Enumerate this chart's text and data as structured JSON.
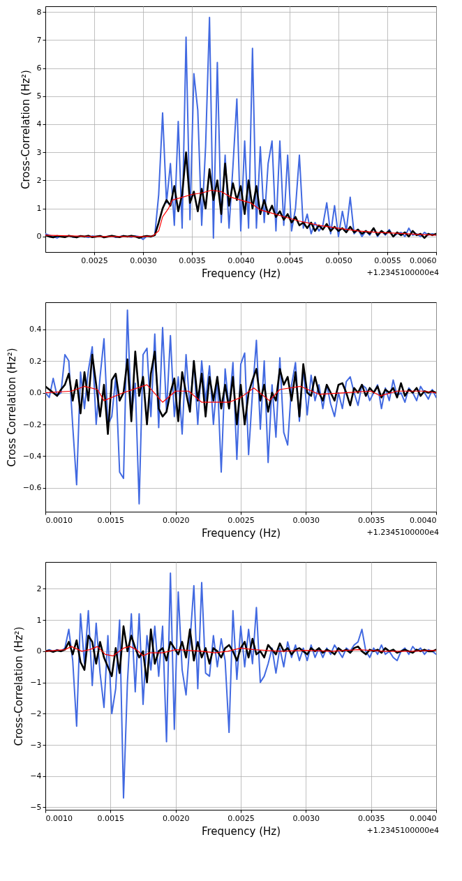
{
  "chart_data": [
    {
      "type": "line",
      "xlabel": "Frequency (Hz)",
      "ylabel": "Cross-Correlation (Hz²)",
      "annotations": [
        "+1.2345100000e4"
      ],
      "grid": true,
      "xlim": [
        0.002,
        0.006
      ],
      "xticks": [
        {
          "value": 0.0025,
          "label": "0.0025"
        },
        {
          "value": 0.003,
          "label": "0.0030"
        },
        {
          "value": 0.0035,
          "label": "0.0035"
        },
        {
          "value": 0.004,
          "label": "0.0040"
        },
        {
          "value": 0.0045,
          "label": "0.0045"
        },
        {
          "value": 0.005,
          "label": "0.0050"
        },
        {
          "value": 0.0055,
          "label": "0.0055"
        },
        {
          "value": 0.006,
          "label": "0.0060"
        }
      ],
      "ylim": [
        -0.55,
        8.2
      ],
      "yticks": [
        0,
        1,
        2,
        3,
        4,
        5,
        6,
        7,
        8
      ],
      "x": [
        0.002,
        0.00204,
        0.00208,
        0.00212,
        0.00216,
        0.0022,
        0.00224,
        0.00228,
        0.00232,
        0.00236,
        0.0024,
        0.00244,
        0.00248,
        0.00252,
        0.00256,
        0.0026,
        0.00264,
        0.00268,
        0.00272,
        0.00276,
        0.0028,
        0.00284,
        0.00288,
        0.00292,
        0.00296,
        0.003,
        0.00304,
        0.00308,
        0.00312,
        0.00316,
        0.0032,
        0.00324,
        0.00328,
        0.00332,
        0.00336,
        0.0034,
        0.00344,
        0.00348,
        0.00352,
        0.00356,
        0.0036,
        0.00364,
        0.00368,
        0.00372,
        0.00376,
        0.0038,
        0.00384,
        0.00388,
        0.00392,
        0.00396,
        0.004,
        0.00404,
        0.00408,
        0.00412,
        0.00416,
        0.0042,
        0.00424,
        0.00428,
        0.00432,
        0.00436,
        0.0044,
        0.00444,
        0.00448,
        0.00452,
        0.00456,
        0.0046,
        0.00464,
        0.00468,
        0.00472,
        0.00476,
        0.0048,
        0.00484,
        0.00488,
        0.00492,
        0.00496,
        0.005,
        0.00504,
        0.00508,
        0.00512,
        0.00516,
        0.0052,
        0.00524,
        0.00528,
        0.00532,
        0.00536,
        0.0054,
        0.00544,
        0.00548,
        0.00552,
        0.00556,
        0.0056,
        0.00564,
        0.00568,
        0.00572,
        0.00576,
        0.0058,
        0.00584,
        0.00588,
        0.00592,
        0.00596,
        0.006
      ],
      "series": [
        {
          "color": "#4169e1",
          "values": [
            0.1,
            0.05,
            0.0,
            -0.05,
            0.02,
            0.0,
            0.03,
            -0.02,
            0.0,
            0.02,
            0.0,
            -0.03,
            0.02,
            0.0,
            0.03,
            -0.02,
            0.0,
            0.02,
            -0.03,
            0.0,
            0.03,
            0.0,
            -0.02,
            0.02,
            0.0,
            -0.1,
            0.02,
            0.0,
            0.05,
            1.5,
            4.4,
            1.2,
            2.6,
            0.4,
            4.1,
            0.3,
            7.1,
            0.6,
            5.8,
            4.5,
            0.4,
            3.2,
            7.8,
            -0.05,
            6.2,
            0.5,
            2.9,
            0.3,
            2.5,
            4.9,
            0.2,
            3.4,
            0.3,
            6.7,
            0.3,
            3.2,
            0.5,
            2.6,
            3.4,
            0.2,
            3.4,
            0.4,
            2.9,
            0.2,
            1.0,
            2.9,
            0.3,
            0.8,
            0.1,
            0.5,
            0.2,
            0.4,
            1.2,
            0.1,
            1.1,
            0.0,
            0.9,
            0.2,
            1.4,
            0.1,
            0.25,
            0.0,
            0.2,
            0.05,
            0.3,
            0.0,
            0.2,
            0.05,
            0.25,
            0.0,
            0.1,
            0.15,
            0.0,
            0.3,
            0.05,
            0.1,
            0.0,
            0.15,
            0.05,
            0.1,
            0.05
          ]
        },
        {
          "color": "#000000",
          "values": [
            0.05,
            0.0,
            -0.03,
            0.02,
            0.0,
            -0.02,
            0.03,
            0.0,
            -0.03,
            0.02,
            0.0,
            0.03,
            -0.02,
            0.0,
            0.02,
            -0.03,
            0.0,
            0.03,
            0.0,
            -0.02,
            0.02,
            0.0,
            0.03,
            0.0,
            -0.05,
            0.0,
            0.02,
            0.0,
            0.05,
            0.5,
            1.0,
            1.3,
            1.1,
            1.8,
            0.9,
            1.5,
            3.0,
            1.2,
            1.6,
            0.9,
            1.7,
            1.0,
            2.4,
            1.3,
            2.0,
            0.8,
            2.6,
            1.1,
            1.9,
            1.3,
            1.8,
            0.8,
            2.0,
            1.0,
            1.8,
            0.8,
            1.3,
            0.8,
            1.1,
            0.7,
            0.9,
            0.6,
            0.8,
            0.5,
            0.7,
            0.4,
            0.5,
            0.3,
            0.5,
            0.2,
            0.4,
            0.25,
            0.45,
            0.2,
            0.35,
            0.2,
            0.3,
            0.15,
            0.35,
            0.15,
            0.25,
            0.1,
            0.2,
            0.1,
            0.3,
            0.05,
            0.2,
            0.1,
            0.2,
            0.0,
            0.15,
            0.05,
            0.15,
            0.0,
            0.2,
            0.05,
            0.1,
            -0.05,
            0.1,
            0.05,
            0.1
          ]
        },
        {
          "color": "#ff0000",
          "x": [
            0.002,
            0.0025,
            0.003,
            0.0031,
            0.00316,
            0.0032,
            0.00326,
            0.0033,
            0.0034,
            0.0035,
            0.0036,
            0.0037,
            0.0038,
            0.0039,
            0.004,
            0.0041,
            0.0042,
            0.0043,
            0.0044,
            0.0045,
            0.0046,
            0.0047,
            0.0048,
            0.0049,
            0.005,
            0.0051,
            0.0052,
            0.0054,
            0.0056,
            0.0058,
            0.006
          ],
          "values": [
            0.05,
            0.0,
            0.0,
            0.02,
            0.2,
            0.7,
            1.0,
            1.3,
            1.4,
            1.5,
            1.55,
            1.65,
            1.6,
            1.4,
            1.3,
            1.2,
            0.95,
            0.85,
            0.75,
            0.65,
            0.55,
            0.48,
            0.4,
            0.35,
            0.3,
            0.25,
            0.2,
            0.15,
            0.12,
            0.08,
            0.05
          ]
        }
      ]
    },
    {
      "type": "line",
      "xlabel": "Frequency (Hz)",
      "ylabel": "Cross Correlation (Hz²)",
      "annotations": [
        "+1.2345100000e4"
      ],
      "grid": true,
      "xlim": [
        0.001,
        0.004
      ],
      "xticks": [
        {
          "value": 0.001,
          "label": "0.0010"
        },
        {
          "value": 0.0015,
          "label": "0.0015"
        },
        {
          "value": 0.002,
          "label": "0.0020"
        },
        {
          "value": 0.0025,
          "label": "0.0025"
        },
        {
          "value": 0.003,
          "label": "0.0030"
        },
        {
          "value": 0.0035,
          "label": "0.0035"
        },
        {
          "value": 0.004,
          "label": "0.0040"
        }
      ],
      "ylim": [
        -0.75,
        0.57
      ],
      "yticks": [
        {
          "value": -0.6,
          "label": "−0.6"
        },
        {
          "value": -0.4,
          "label": "−0.4"
        },
        {
          "value": -0.2,
          "label": "−0.2"
        },
        {
          "value": 0,
          "label": "0.0"
        },
        0.2,
        0.4
      ],
      "x": [
        0.001,
        0.00103,
        0.00106,
        0.00109,
        0.00112,
        0.00115,
        0.00118,
        0.00121,
        0.00124,
        0.00127,
        0.0013,
        0.00133,
        0.00136,
        0.00139,
        0.00142,
        0.00145,
        0.00148,
        0.00151,
        0.00154,
        0.00157,
        0.0016,
        0.00163,
        0.00166,
        0.00169,
        0.00172,
        0.00175,
        0.00178,
        0.00181,
        0.00184,
        0.00187,
        0.0019,
        0.00193,
        0.00196,
        0.00199,
        0.00202,
        0.00205,
        0.00208,
        0.00211,
        0.00214,
        0.00217,
        0.0022,
        0.00223,
        0.00226,
        0.00229,
        0.00232,
        0.00235,
        0.00238,
        0.00241,
        0.00244,
        0.00247,
        0.0025,
        0.00253,
        0.00256,
        0.00259,
        0.00262,
        0.00265,
        0.00268,
        0.00271,
        0.00274,
        0.00277,
        0.0028,
        0.00283,
        0.00286,
        0.00289,
        0.00292,
        0.00295,
        0.00298,
        0.00301,
        0.00304,
        0.00307,
        0.0031,
        0.00313,
        0.00316,
        0.00319,
        0.00322,
        0.00325,
        0.00328,
        0.00331,
        0.00334,
        0.00337,
        0.0034,
        0.00343,
        0.00346,
        0.00349,
        0.00352,
        0.00355,
        0.00358,
        0.00361,
        0.00364,
        0.00367,
        0.0037,
        0.00373,
        0.00376,
        0.00379,
        0.00382,
        0.00385,
        0.00388,
        0.00391,
        0.00394,
        0.00397,
        0.004
      ],
      "series": [
        {
          "color": "#4169e1",
          "values": [
            0.0,
            -0.03,
            0.09,
            -0.02,
            0.0,
            0.24,
            0.2,
            -0.21,
            -0.58,
            0.13,
            -0.1,
            0.14,
            0.29,
            -0.2,
            0.1,
            0.34,
            -0.2,
            -0.15,
            0.1,
            -0.5,
            -0.54,
            0.52,
            -0.15,
            0.06,
            -0.7,
            0.24,
            0.28,
            -0.15,
            0.37,
            -0.22,
            0.41,
            -0.12,
            0.36,
            -0.15,
            0.1,
            -0.26,
            0.24,
            -0.1,
            0.2,
            -0.2,
            0.2,
            -0.05,
            0.17,
            -0.2,
            0.1,
            -0.5,
            0.15,
            -0.1,
            0.19,
            -0.42,
            0.18,
            0.25,
            -0.39,
            0.0,
            0.33,
            -0.23,
            0.2,
            -0.44,
            0.05,
            -0.28,
            0.22,
            -0.25,
            -0.33,
            0.05,
            0.19,
            -0.18,
            0.16,
            -0.14,
            0.11,
            -0.05,
            0.05,
            -0.1,
            0.05,
            -0.07,
            -0.15,
            0.0,
            -0.1,
            0.07,
            0.1,
            0.0,
            -0.08,
            0.05,
            0.03,
            -0.05,
            0.0,
            0.05,
            -0.1,
            0.03,
            -0.05,
            0.08,
            -0.02,
            0.0,
            -0.06,
            0.03,
            0.0,
            -0.05,
            0.04,
            0.0,
            -0.04,
            0.02,
            -0.03
          ]
        },
        {
          "color": "#000000",
          "values": [
            0.04,
            0.02,
            0.0,
            -0.02,
            0.02,
            0.05,
            0.12,
            -0.05,
            0.08,
            -0.13,
            0.13,
            -0.05,
            0.24,
            0.05,
            -0.15,
            0.05,
            -0.26,
            0.08,
            0.12,
            -0.05,
            0.0,
            0.21,
            -0.18,
            0.26,
            -0.02,
            0.1,
            -0.2,
            0.12,
            0.26,
            -0.1,
            -0.15,
            -0.12,
            0.0,
            0.09,
            -0.18,
            0.13,
            0.0,
            -0.12,
            0.2,
            -0.05,
            0.12,
            -0.15,
            0.1,
            -0.05,
            0.1,
            -0.1,
            0.05,
            -0.1,
            0.1,
            -0.2,
            0.05,
            -0.2,
            0.0,
            0.08,
            0.15,
            -0.05,
            0.05,
            -0.12,
            0.0,
            -0.05,
            0.15,
            0.05,
            0.1,
            -0.05,
            0.13,
            -0.15,
            0.18,
            0.0,
            -0.02,
            0.1,
            0.0,
            -0.05,
            0.05,
            0.0,
            -0.05,
            0.05,
            0.06,
            0.0,
            -0.08,
            0.03,
            0.0,
            0.05,
            -0.02,
            0.03,
            0.0,
            0.04,
            -0.03,
            0.02,
            0.0,
            0.03,
            -0.03,
            0.06,
            -0.02,
            0.02,
            0.0,
            0.03,
            -0.02,
            0.01,
            0.0,
            0.01,
            0.0
          ]
        },
        {
          "color": "#ff0000",
          "x": [
            0.001,
            0.0012,
            0.0013,
            0.0014,
            0.00145,
            0.0016,
            0.00178,
            0.0019,
            0.002,
            0.0021,
            0.0022,
            0.00241,
            0.0025,
            0.0026,
            0.00272,
            0.0028,
            0.00296,
            0.0031,
            0.0033,
            0.0035,
            0.00357,
            0.0037,
            0.0039,
            0.004
          ],
          "values": [
            0.0,
            0.01,
            0.04,
            0.02,
            -0.05,
            0.0,
            0.05,
            -0.06,
            0.01,
            0.01,
            -0.06,
            -0.06,
            -0.03,
            0.03,
            -0.05,
            0.02,
            0.04,
            -0.01,
            0.0,
            0.01,
            -0.02,
            0.01,
            0.01,
            0.0
          ]
        }
      ]
    },
    {
      "type": "line",
      "xlabel": "Frequency (Hz)",
      "ylabel": "Cross-Correlation (Hz²)",
      "annotations": [
        "+1.2345100000e4"
      ],
      "grid": true,
      "xlim": [
        0.001,
        0.004
      ],
      "xticks": [
        {
          "value": 0.001,
          "label": "0.0010"
        },
        {
          "value": 0.0015,
          "label": "0.0015"
        },
        {
          "value": 0.002,
          "label": "0.0020"
        },
        {
          "value": 0.0025,
          "label": "0.0025"
        },
        {
          "value": 0.003,
          "label": "0.0030"
        },
        {
          "value": 0.0035,
          "label": "0.0035"
        },
        {
          "value": 0.004,
          "label": "0.0040"
        }
      ],
      "ylim": [
        -5.08,
        2.86
      ],
      "yticks": [
        {
          "value": -5,
          "label": "−5"
        },
        {
          "value": -4,
          "label": "−4"
        },
        {
          "value": -3,
          "label": "−3"
        },
        {
          "value": -2,
          "label": "−2"
        },
        {
          "value": -1,
          "label": "−1"
        },
        0,
        1,
        2
      ],
      "x": [
        0.001,
        0.00103,
        0.00106,
        0.00109,
        0.00112,
        0.00115,
        0.00118,
        0.00121,
        0.00124,
        0.00127,
        0.0013,
        0.00133,
        0.00136,
        0.00139,
        0.00142,
        0.00145,
        0.00148,
        0.00151,
        0.00154,
        0.00157,
        0.0016,
        0.00163,
        0.00166,
        0.00169,
        0.00172,
        0.00175,
        0.00178,
        0.00181,
        0.00184,
        0.00187,
        0.0019,
        0.00193,
        0.00196,
        0.00199,
        0.00202,
        0.00205,
        0.00208,
        0.00211,
        0.00214,
        0.00217,
        0.0022,
        0.00223,
        0.00226,
        0.00229,
        0.00232,
        0.00235,
        0.00238,
        0.00241,
        0.00244,
        0.00247,
        0.0025,
        0.00253,
        0.00256,
        0.00259,
        0.00262,
        0.00265,
        0.00268,
        0.00271,
        0.00274,
        0.00277,
        0.0028,
        0.00283,
        0.00286,
        0.00289,
        0.00292,
        0.00295,
        0.00298,
        0.00301,
        0.00304,
        0.00307,
        0.0031,
        0.00313,
        0.00316,
        0.00319,
        0.00322,
        0.00325,
        0.00328,
        0.00331,
        0.00334,
        0.00337,
        0.0034,
        0.00343,
        0.00346,
        0.00349,
        0.00352,
        0.00355,
        0.00358,
        0.00361,
        0.00364,
        0.00367,
        0.0037,
        0.00373,
        0.00376,
        0.00379,
        0.00382,
        0.00385,
        0.00388,
        0.00391,
        0.00394,
        0.00397,
        0.004
      ],
      "series": [
        {
          "color": "#4169e1",
          "values": [
            0.0,
            0.05,
            0.0,
            0.05,
            0.0,
            0.1,
            0.7,
            -0.3,
            -2.4,
            1.2,
            -0.4,
            1.3,
            -1.1,
            0.9,
            -0.7,
            -1.8,
            0.5,
            -2.0,
            -1.2,
            1.0,
            -4.7,
            -1.0,
            1.2,
            -1.3,
            1.2,
            -1.7,
            0.5,
            -0.6,
            0.8,
            -0.8,
            0.8,
            -2.9,
            2.5,
            -2.5,
            1.9,
            -0.6,
            -1.4,
            0.3,
            2.1,
            -1.2,
            2.2,
            -0.7,
            -0.8,
            0.5,
            -0.5,
            0.4,
            -0.3,
            -2.6,
            1.3,
            -0.9,
            0.8,
            -0.5,
            0.7,
            -0.4,
            1.4,
            -1.0,
            -0.8,
            -0.4,
            0.1,
            -0.7,
            0.1,
            -0.5,
            0.3,
            -0.2,
            0.2,
            -0.3,
            0.1,
            -0.3,
            0.2,
            -0.2,
            0.1,
            -0.2,
            0.1,
            -0.1,
            0.2,
            0.0,
            -0.2,
            0.1,
            0.0,
            0.2,
            0.3,
            0.7,
            0.0,
            -0.2,
            0.1,
            -0.1,
            0.2,
            -0.1,
            0.0,
            -0.2,
            -0.3,
            0.0,
            0.1,
            -0.1,
            0.15,
            0.0,
            0.1,
            -0.1,
            0.05,
            0.0,
            -0.1
          ]
        },
        {
          "color": "#000000",
          "values": [
            0.0,
            0.02,
            -0.02,
            0.03,
            0.0,
            0.05,
            0.3,
            -0.1,
            0.35,
            -0.35,
            -0.6,
            0.5,
            0.3,
            -0.4,
            0.3,
            -0.2,
            -0.5,
            -0.8,
            0.1,
            -0.7,
            0.8,
            0.0,
            0.5,
            0.1,
            -0.2,
            0.0,
            -1.0,
            0.7,
            -0.4,
            0.0,
            0.1,
            -0.3,
            0.3,
            0.1,
            -0.1,
            0.3,
            -0.2,
            0.7,
            -0.3,
            0.3,
            -0.2,
            0.1,
            -0.4,
            0.1,
            0.0,
            -0.2,
            0.1,
            0.2,
            0.0,
            -0.3,
            0.1,
            0.3,
            -0.2,
            0.4,
            -0.1,
            0.0,
            -0.2,
            0.2,
            0.05,
            -0.1,
            0.25,
            0.0,
            0.1,
            -0.1,
            0.05,
            0.1,
            0.0,
            -0.1,
            0.1,
            0.0,
            0.1,
            -0.05,
            0.05,
            0.0,
            -0.1,
            0.1,
            0.0,
            0.05,
            -0.05,
            0.1,
            0.15,
            0.0,
            -0.1,
            0.05,
            0.0,
            0.05,
            -0.05,
            0.1,
            0.0,
            0.05,
            -0.05,
            0.0,
            0.05,
            0.0,
            -0.05,
            0.05,
            0.0,
            0.05,
            0.0,
            0.0,
            0.05
          ]
        },
        {
          "color": "#ff0000",
          "x": [
            0.001,
            0.00115,
            0.0012,
            0.00128,
            0.00134,
            0.0014,
            0.00146,
            0.00152,
            0.0016,
            0.00165,
            0.0017,
            0.00175,
            0.0018,
            0.0019,
            0.002,
            0.0021,
            0.0022,
            0.0023,
            0.0024,
            0.0025,
            0.0026,
            0.0028,
            0.003,
            0.0032,
            0.0034,
            0.0036,
            0.0038,
            0.004
          ],
          "values": [
            0.0,
            0.05,
            0.15,
            0.0,
            0.05,
            0.15,
            -0.1,
            -0.15,
            0.1,
            0.15,
            0.05,
            -0.15,
            -0.05,
            -0.05,
            0.05,
            0.03,
            0.0,
            -0.05,
            0.0,
            0.1,
            0.05,
            0.0,
            0.03,
            0.0,
            0.05,
            0.0,
            0.0,
            0.03
          ]
        }
      ]
    }
  ]
}
